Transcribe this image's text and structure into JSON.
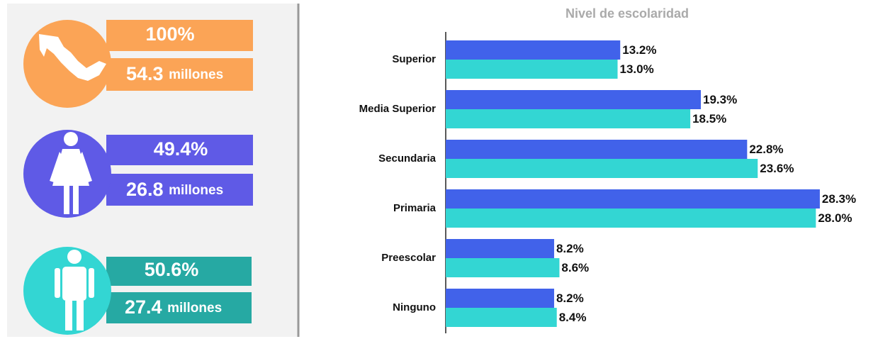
{
  "summary": [
    {
      "percent": "100%",
      "amount": {
        "number": "54.3",
        "unit": "millones"
      }
    },
    {
      "percent": "49.4%",
      "amount": {
        "number": "26.8",
        "unit": "millones"
      }
    },
    {
      "percent": "50.6%",
      "amount": {
        "number": "27.4",
        "unit": "millones"
      }
    }
  ],
  "chart_data": {
    "type": "hbar",
    "title": "Nivel de escolaridad",
    "categories": [
      "Superior",
      "Media Superior",
      "Secundaria",
      "Primaria",
      "Preescolar",
      "Ninguno"
    ],
    "series": [
      {
        "color": "#4162ea",
        "values": [
          13.2,
          19.3,
          22.8,
          28.3,
          8.2,
          8.2
        ],
        "value_labels": [
          "13.2%",
          "19.3%",
          "22.8%",
          "28.3%",
          "8.2%",
          "8.2%"
        ]
      },
      {
        "color": "#33d6d3",
        "values": [
          13.0,
          18.5,
          23.6,
          28.0,
          8.6,
          8.4
        ],
        "value_labels": [
          "13.0%",
          "18.5%",
          "23.6%",
          "28.0%",
          "8.6%",
          "8.4%"
        ]
      }
    ],
    "xlim": [
      0,
      32.7
    ]
  }
}
